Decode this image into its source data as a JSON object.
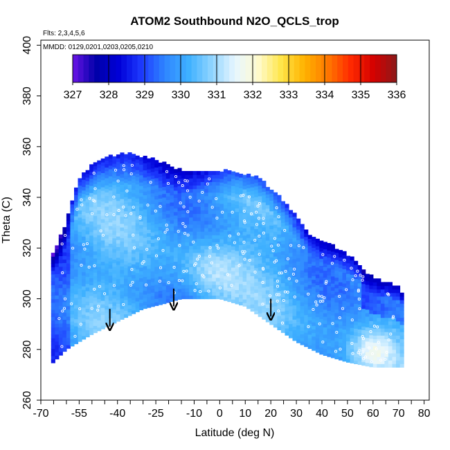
{
  "chart_data": {
    "type": "heatmap",
    "title": "ATOM2 Southbound N2O_QCLS_trop",
    "flights_label": "Flts: 2,3,4,5,6",
    "dates_label": "MMDD: 0129,0201,0203,0205,0210",
    "xlabel": "Latitude (deg N)",
    "ylabel": "Theta (C)",
    "xlim": [
      -70,
      82
    ],
    "ylim": [
      260,
      402
    ],
    "x_ticks": [
      -70,
      -55,
      -40,
      -25,
      -10,
      0,
      10,
      20,
      30,
      40,
      50,
      60,
      70,
      80
    ],
    "y_ticks": [
      260,
      280,
      300,
      320,
      340,
      360,
      380,
      400
    ],
    "colorbar": {
      "min": 327,
      "max": 336,
      "ticks": [
        327,
        328,
        329,
        330,
        331,
        332,
        333,
        334,
        335,
        336
      ],
      "colors": [
        "#6a14e6",
        "#0000a8",
        "#0000d8",
        "#1e3cff",
        "#2f86ff",
        "#3eb0ff",
        "#8fd4ff",
        "#e6f6ff",
        "#fffbd0",
        "#ffe64a",
        "#ffb300",
        "#ff7a00",
        "#ff2a00",
        "#d40000",
        "#8b1a1a"
      ]
    },
    "field": {
      "lat_range": [
        -66,
        71
      ],
      "theta_floor": [
        [
          -66,
          274
        ],
        [
          -60,
          280
        ],
        [
          -50,
          286
        ],
        [
          -42,
          290
        ],
        [
          -30,
          296
        ],
        [
          -22,
          298
        ],
        [
          -15,
          300
        ],
        [
          -8,
          300
        ],
        [
          0,
          300
        ],
        [
          10,
          297
        ],
        [
          20,
          290
        ],
        [
          30,
          283
        ],
        [
          40,
          278
        ],
        [
          50,
          275
        ],
        [
          60,
          273
        ],
        [
          71,
          273
        ]
      ],
      "theta_ceiling": [
        [
          -66,
          316
        ],
        [
          -64,
          320
        ],
        [
          -60,
          330
        ],
        [
          -55,
          347
        ],
        [
          -48,
          354
        ],
        [
          -42,
          356
        ],
        [
          -35,
          357
        ],
        [
          -25,
          354
        ],
        [
          -15,
          350
        ],
        [
          -5,
          350
        ],
        [
          5,
          350
        ],
        [
          15,
          347
        ],
        [
          20,
          343
        ],
        [
          25,
          338
        ],
        [
          30,
          332
        ],
        [
          35,
          325
        ],
        [
          40,
          322
        ],
        [
          45,
          320
        ],
        [
          50,
          317
        ],
        [
          55,
          312
        ],
        [
          60,
          308
        ],
        [
          65,
          306
        ],
        [
          70,
          304
        ],
        [
          71,
          302
        ]
      ]
    },
    "arrows": [
      {
        "lat": -43,
        "theta_from": 296,
        "theta_to": 289
      },
      {
        "lat": -18,
        "theta_from": 304,
        "theta_to": 297
      },
      {
        "lat": 20,
        "theta_from": 300,
        "theta_to": 293
      }
    ]
  }
}
